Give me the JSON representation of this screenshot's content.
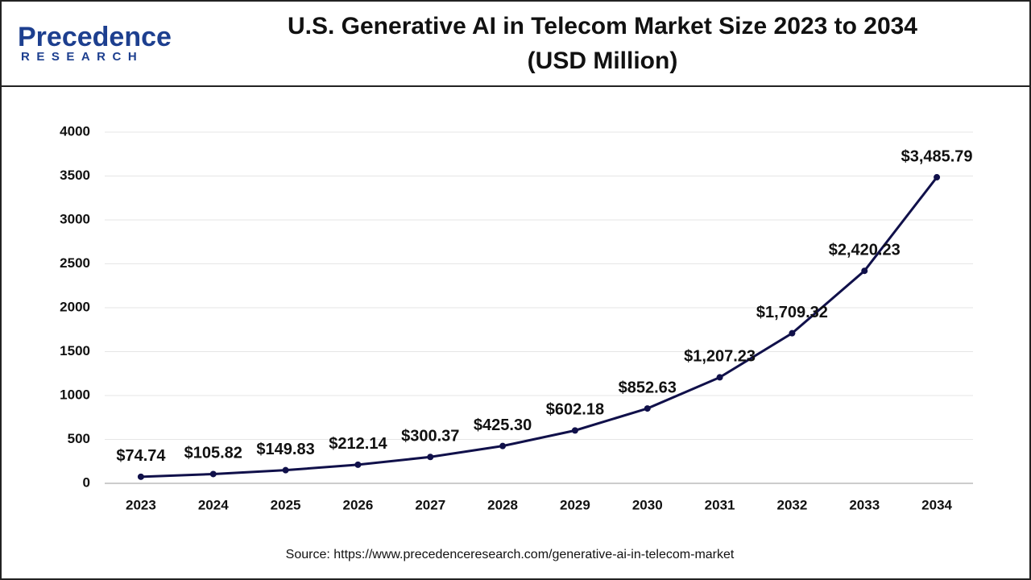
{
  "logo": {
    "name": "Precedence",
    "tagline": "RESEARCH"
  },
  "chart_data": {
    "type": "line",
    "title": "U.S. Generative AI in Telecom Market Size 2023 to 2034",
    "subtitle": "(USD Million)",
    "categories": [
      "2023",
      "2024",
      "2025",
      "2026",
      "2027",
      "2028",
      "2029",
      "2030",
      "2031",
      "2032",
      "2033",
      "2034"
    ],
    "values": [
      74.74,
      105.82,
      149.83,
      212.14,
      300.37,
      425.3,
      602.18,
      852.63,
      1207.23,
      1709.32,
      2420.23,
      3485.79
    ],
    "value_labels": [
      "$74.74",
      "$105.82",
      "$149.83",
      "$212.14",
      "$300.37",
      "$425.30",
      "$602.18",
      "$852.63",
      "$1,207.23",
      "$1,709.32",
      "$2,420.23",
      "$3,485.79"
    ],
    "color": "#10104a",
    "ylim": [
      0,
      4000
    ],
    "yticks": [
      0,
      500,
      1000,
      1500,
      2000,
      2500,
      3000,
      3500,
      4000
    ],
    "grid": true,
    "source": "Source: https://www.precedenceresearch.com/generative-ai-in-telecom-market"
  }
}
